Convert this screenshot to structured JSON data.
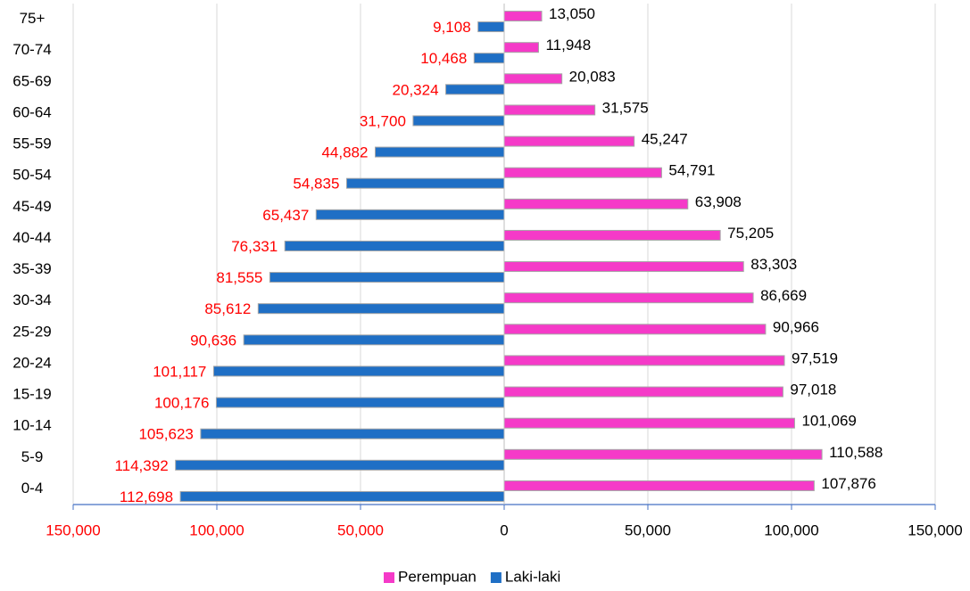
{
  "chart_data": {
    "type": "pyramid",
    "categories": [
      "0-4",
      "5-9",
      "10-14",
      "15-19",
      "20-24",
      "25-29",
      "30-34",
      "35-39",
      "40-44",
      "45-49",
      "50-54",
      "55-59",
      "60-64",
      "65-69",
      "70-74",
      "75+"
    ],
    "series": [
      {
        "name": "Perempuan",
        "color": "#f53ac8",
        "label_color": "#000000",
        "values": [
          107876,
          110588,
          101069,
          97018,
          97519,
          90966,
          86669,
          83303,
          75205,
          63908,
          54791,
          45247,
          31575,
          20083,
          11948,
          13050
        ],
        "value_labels": [
          "107,876",
          "110,588",
          "101,069",
          "97,018",
          "97,519",
          "90,966",
          "86,669",
          "83,303",
          "75,205",
          "63,908",
          "54,791",
          "45,247",
          "31,575",
          "20,083",
          "11,948",
          "13,050"
        ]
      },
      {
        "name": "Laki-laki",
        "color": "#1f6fc5",
        "label_color": "#ff0000",
        "values": [
          112698,
          114392,
          105623,
          100176,
          101117,
          90636,
          85612,
          81555,
          76331,
          65437,
          54835,
          44882,
          31700,
          20324,
          10468,
          9108
        ],
        "value_labels": [
          "112,698",
          "114,392",
          "105,623",
          "100,176",
          "101,117",
          "90,636",
          "85,612",
          "81,555",
          "76,331",
          "65,437",
          "54,835",
          "44,882",
          "31,700",
          "20,324",
          "10,468",
          "9,108"
        ]
      }
    ],
    "xlim": [
      -150000,
      150000
    ],
    "xticks": [
      {
        "value": -150000,
        "label": "150,000"
      },
      {
        "value": -100000,
        "label": "100,000"
      },
      {
        "value": -50000,
        "label": "50,000"
      },
      0,
      {
        "value": 50000,
        "label": "50,000"
      },
      {
        "value": 100000,
        "label": "100,000"
      },
      {
        "value": 150000,
        "label": "150,000"
      }
    ],
    "grid": true,
    "legend": "bottom"
  }
}
